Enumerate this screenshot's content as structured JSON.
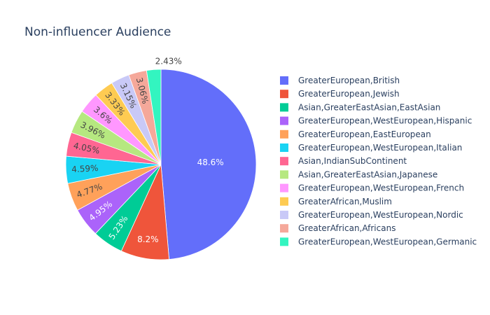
{
  "chart_data": {
    "type": "pie",
    "title": "Non-influencer Audience",
    "direction": "clockwise",
    "sort": "descending",
    "legend_position": "right",
    "slices": [
      {
        "label": "GreaterEuropean,British",
        "value": 48.6,
        "text": "48.6%",
        "color": "#636efa"
      },
      {
        "label": "GreaterEuropean,Jewish",
        "value": 8.2,
        "text": "8.2%",
        "color": "#EF553B"
      },
      {
        "label": "Asian,GreaterEastAsian,EastAsian",
        "value": 5.23,
        "text": "5.23%",
        "color": "#00cc96"
      },
      {
        "label": "GreaterEuropean,WestEuropean,Hispanic",
        "value": 4.95,
        "text": "4.95%",
        "color": "#ab63fa"
      },
      {
        "label": "GreaterEuropean,EastEuropean",
        "value": 4.77,
        "text": "4.77%",
        "color": "#FFA15A"
      },
      {
        "label": "GreaterEuropean,WestEuropean,Italian",
        "value": 4.59,
        "text": "4.59%",
        "color": "#19d3f3"
      },
      {
        "label": "Asian,IndianSubContinent",
        "value": 4.05,
        "text": "4.05%",
        "color": "#FF6692"
      },
      {
        "label": "Asian,GreaterEastAsian,Japanese",
        "value": 3.96,
        "text": "3.96%",
        "color": "#B6E880"
      },
      {
        "label": "GreaterEuropean,WestEuropean,French",
        "value": 3.6,
        "text": "3.6%",
        "color": "#FF97FF"
      },
      {
        "label": "GreaterAfrican,Muslim",
        "value": 3.33,
        "text": "3.33%",
        "color": "#FECB52"
      },
      {
        "label": "GreaterEuropean,WestEuropean,Nordic",
        "value": 3.15,
        "text": "3.15%",
        "color": "#c9c9f7"
      },
      {
        "label": "GreaterAfrican,Africans",
        "value": 3.06,
        "text": "3.06%",
        "color": "#f5a89a"
      },
      {
        "label": "GreaterEuropean,WestEuropean,Germanic",
        "value": 2.43,
        "text": "2.43%",
        "color": "#33f5c0"
      }
    ]
  }
}
